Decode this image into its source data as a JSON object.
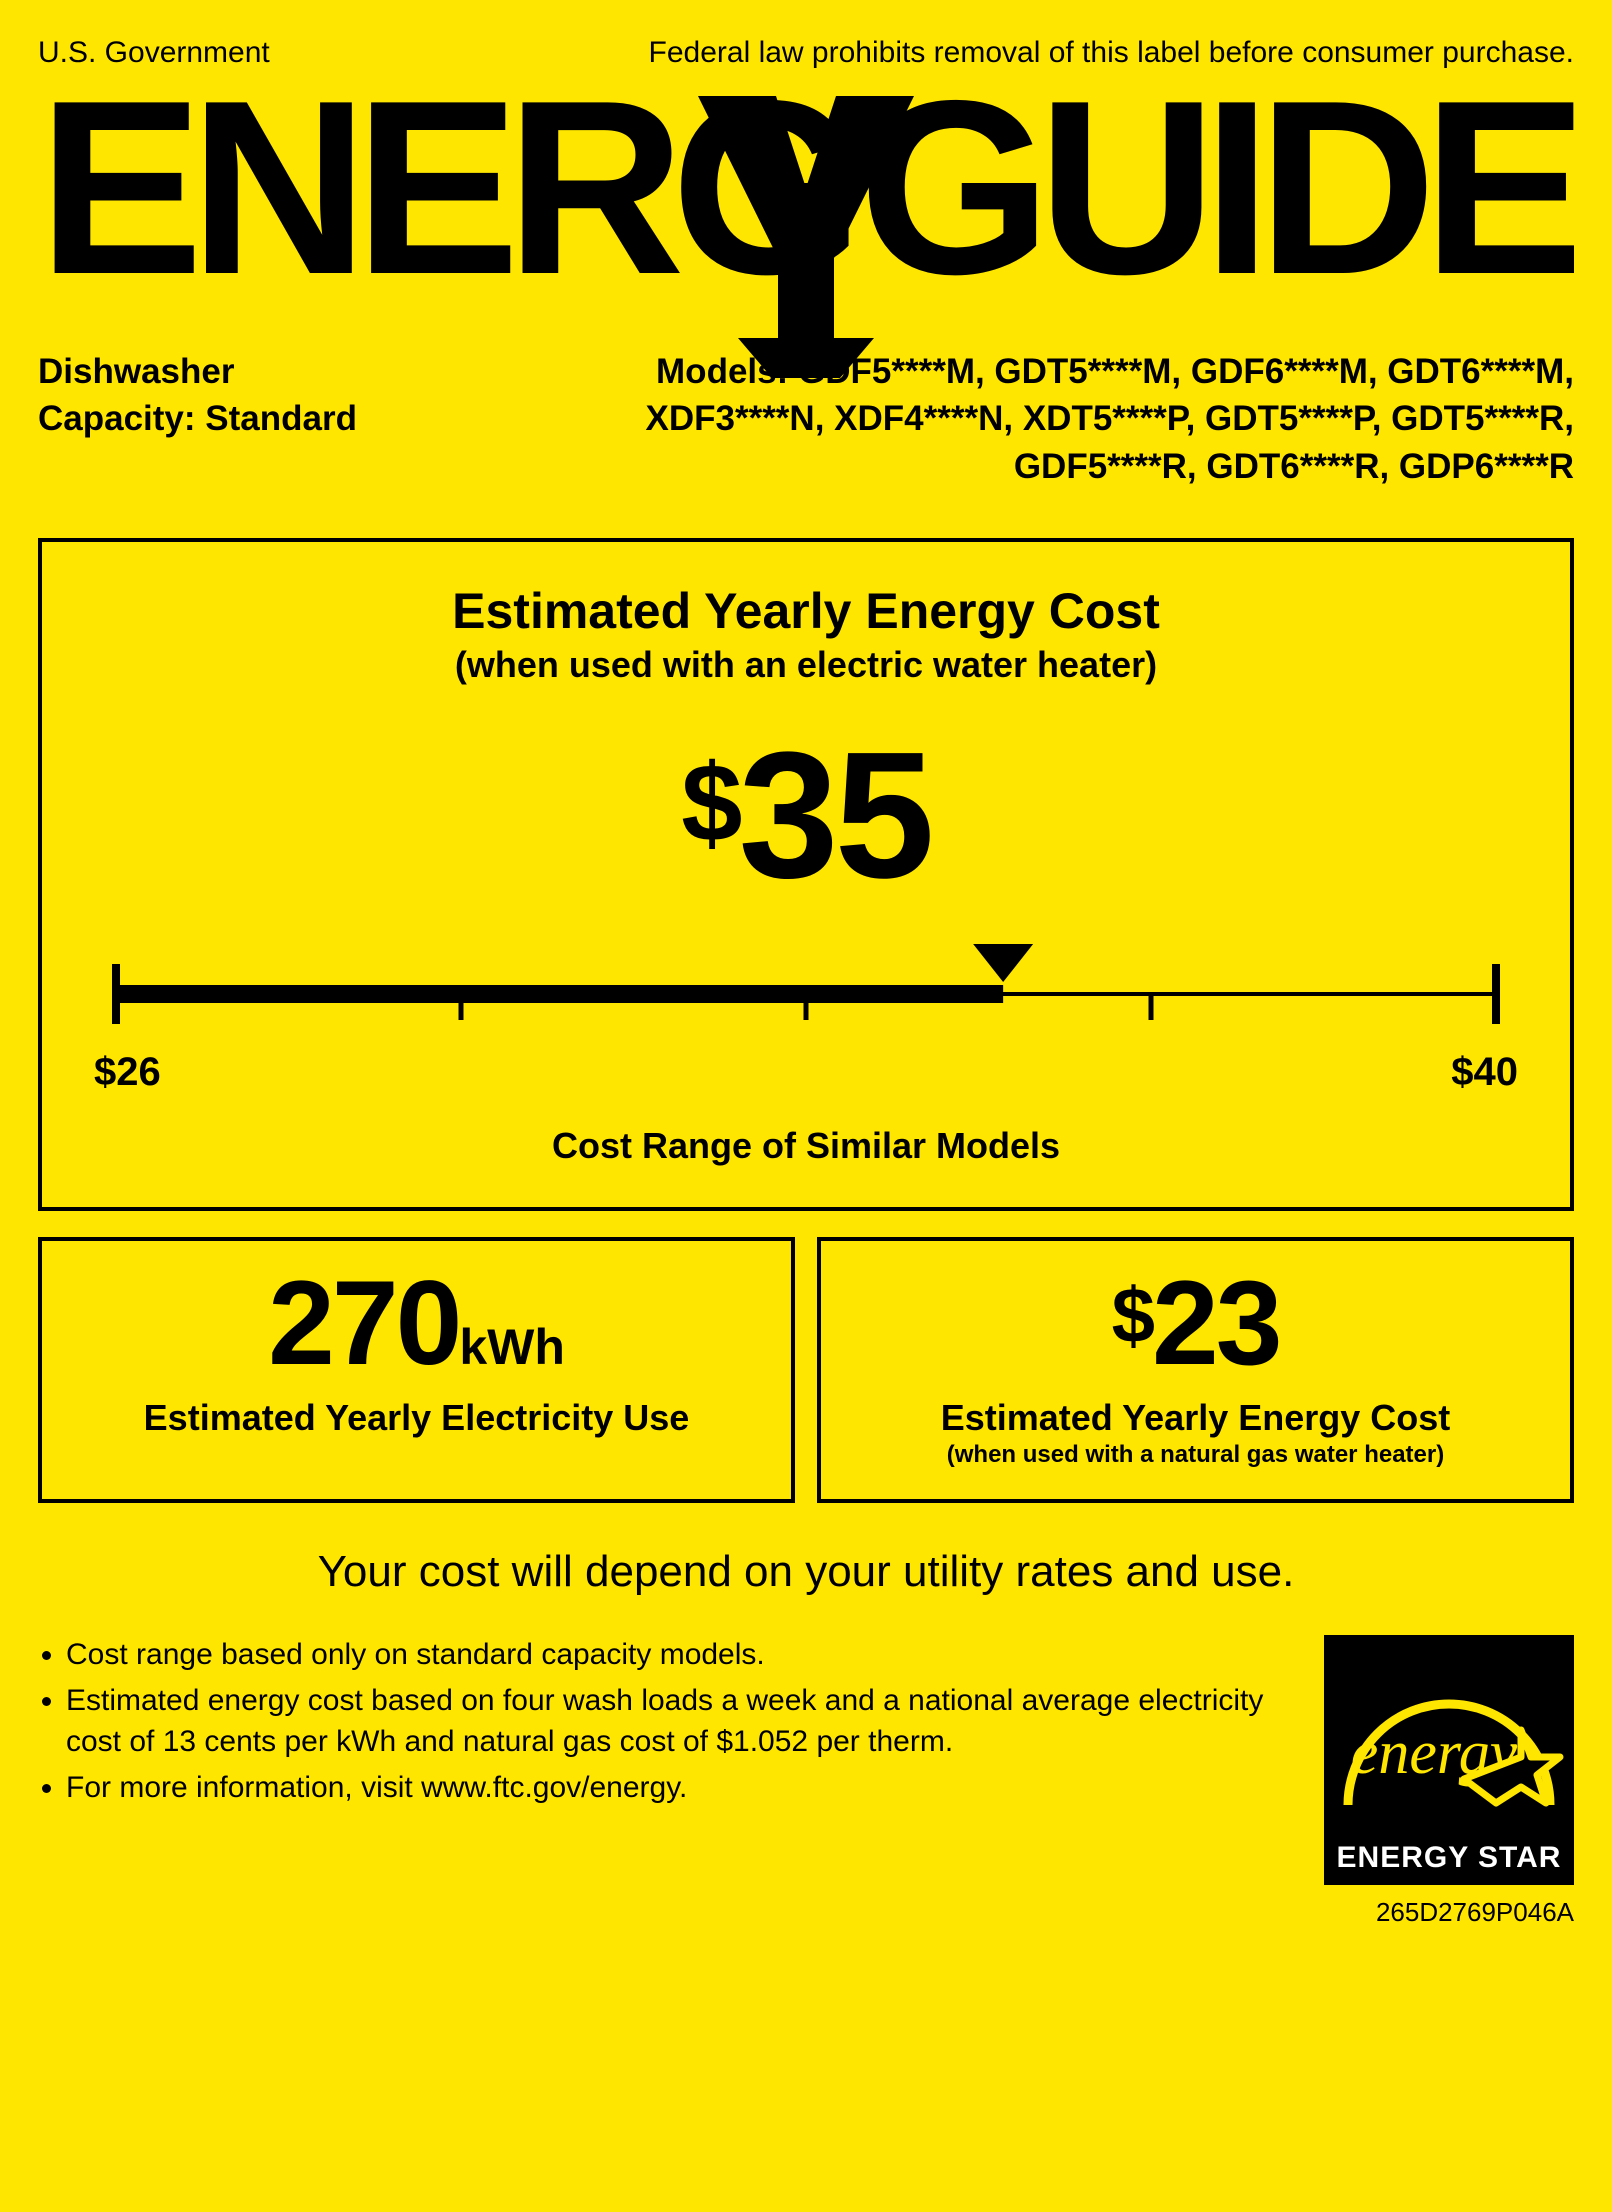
{
  "colors": {
    "background": "#ffe600",
    "ink": "#000000",
    "estar_bg": "#000000",
    "estar_text": "#ffffff"
  },
  "header": {
    "left": "U.S. Government",
    "right": "Federal law prohibits removal of this label before consumer purchase."
  },
  "logo": {
    "text": "ENERGYGUIDE",
    "font_weight": 900
  },
  "product": {
    "type": "Dishwasher",
    "capacity_label": "Capacity: Standard",
    "models_label": "Models:",
    "models": "GDF5****M, GDT5****M, GDF6****M, GDT6****M, XDF3****N, XDF4****N, XDT5****P, GDT5****P, GDT5****R, GDF5****R, GDT6****R, GDP6****R"
  },
  "cost_panel": {
    "title": "Estimated Yearly Energy Cost",
    "subtitle": "(when used with an electric water heater)",
    "value": "35",
    "currency": "$",
    "scale": {
      "min": 26,
      "max": 40,
      "value": 35,
      "min_label": "$26",
      "max_label": "$40",
      "ticks": [
        26,
        29.5,
        33,
        36.5,
        40
      ],
      "caption": "Cost Range of Similar Models",
      "thin_line_width": 4,
      "thick_line_width": 18,
      "tick_height_small": 26,
      "endcap_height": 60
    }
  },
  "usage_box": {
    "value": "270",
    "unit": "kWh",
    "caption": "Estimated Yearly Electricity Use"
  },
  "gas_box": {
    "value": "23",
    "currency": "$",
    "caption": "Estimated Yearly Energy Cost",
    "sub": "(when used with a natural gas water heater)"
  },
  "depend_line": "Your cost will depend on your utility rates and use.",
  "bullets": [
    "Cost range based only on standard capacity models.",
    "Estimated energy cost based on four wash loads a week and a national average electricity cost of 13 cents per kWh and natural gas cost of $1.052 per therm.",
    "For more information, visit www.ftc.gov/energy."
  ],
  "energy_star": {
    "label": "ENERGY STAR"
  },
  "part_number": "265D2769P046A"
}
